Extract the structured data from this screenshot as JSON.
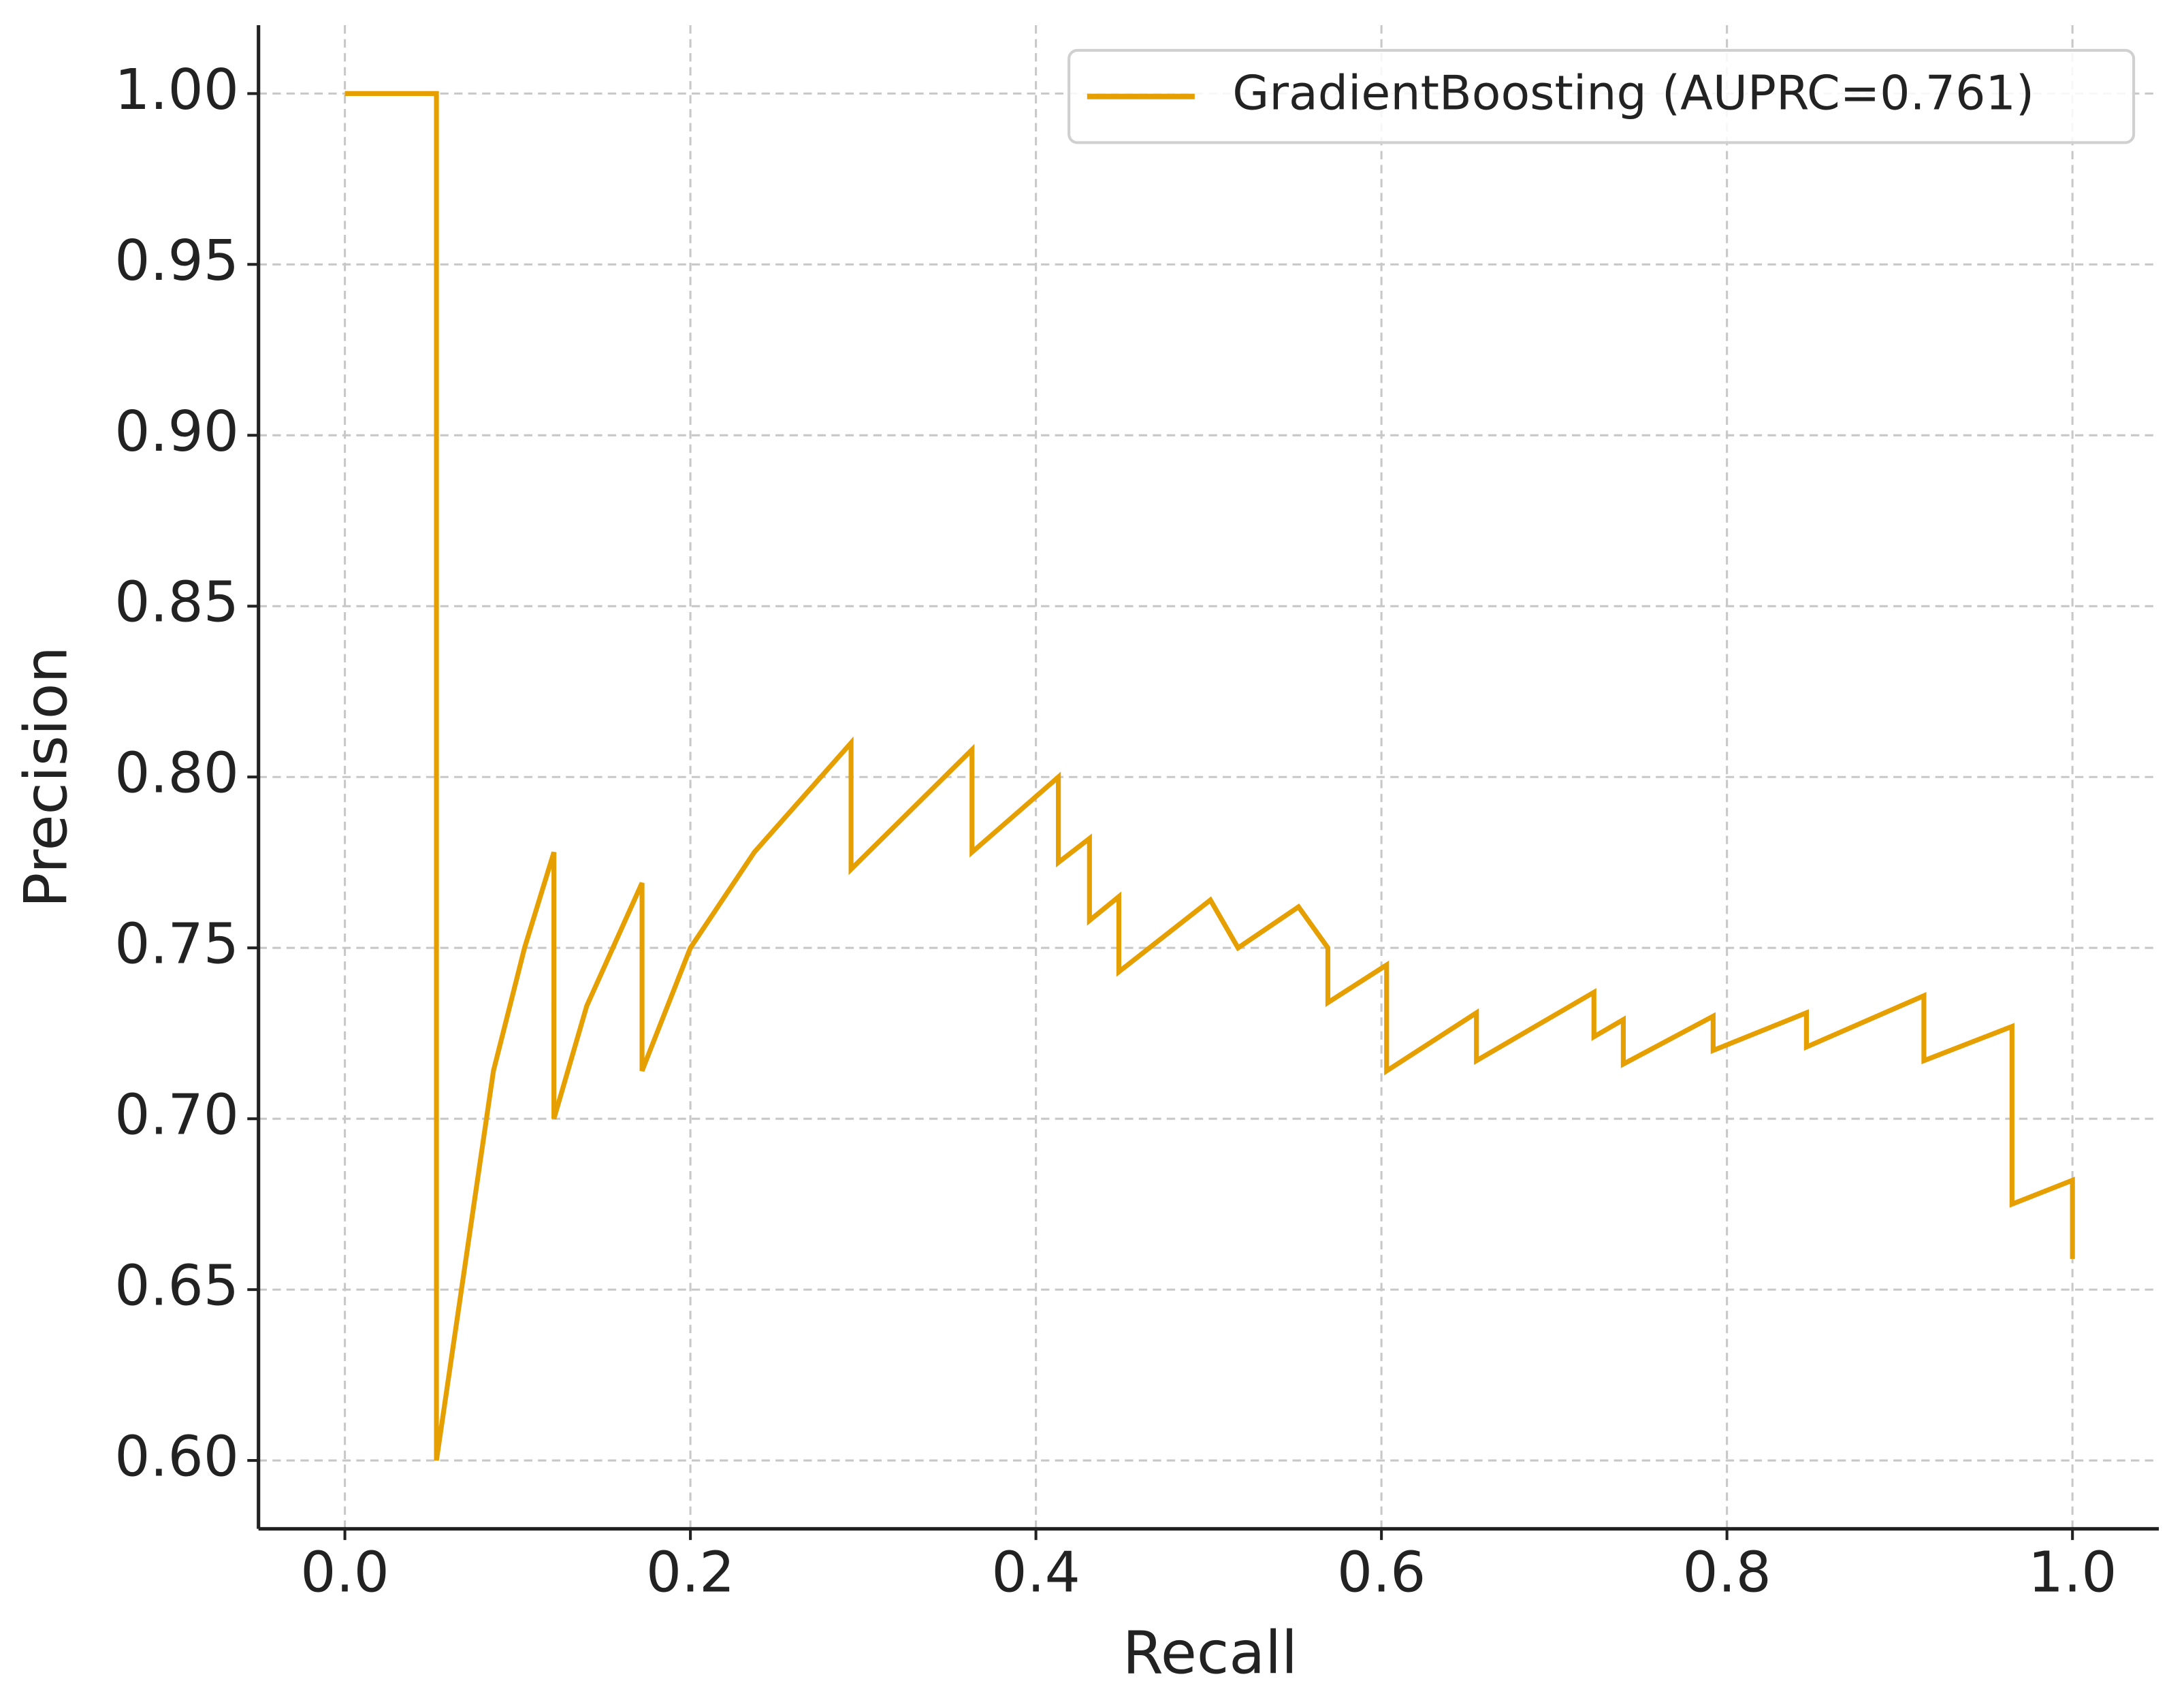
{
  "chart_data": {
    "type": "line",
    "xlabel": "Recall",
    "ylabel": "Precision",
    "xlim": [
      -0.05,
      1.05
    ],
    "ylim": [
      0.58,
      1.02
    ],
    "xticks": [
      {
        "value": 0,
        "label": "0.0"
      },
      {
        "value": 0.2,
        "label": "0.2"
      },
      {
        "value": 0.4,
        "label": "0.4"
      },
      {
        "value": 0.6,
        "label": "0.6"
      },
      {
        "value": 0.8,
        "label": "0.8"
      },
      {
        "value": 1,
        "label": "1.0"
      }
    ],
    "yticks": [
      {
        "value": 0.6,
        "label": "0.60"
      },
      {
        "value": 0.65,
        "label": "0.65"
      },
      {
        "value": 0.7,
        "label": "0.70"
      },
      {
        "value": 0.75,
        "label": "0.75"
      },
      {
        "value": 0.8,
        "label": "0.80"
      },
      {
        "value": 0.85,
        "label": "0.85"
      },
      {
        "value": 0.9,
        "label": "0.90"
      },
      {
        "value": 0.95,
        "label": "0.95"
      },
      {
        "value": 1,
        "label": "1.00"
      }
    ],
    "grid": true,
    "legend": "upper right",
    "series": [
      {
        "name": "GradientBoosting (AUPRC=0.761)",
        "color": "#e69f00",
        "x": [
          0,
          0.053,
          0.053,
          0.086,
          0.104,
          0.121,
          0.121,
          0.14,
          0.172,
          0.172,
          0.2,
          0.237,
          0.293,
          0.293,
          0.363,
          0.363,
          0.413,
          0.413,
          0.431,
          0.431,
          0.448,
          0.448,
          0.501,
          0.517,
          0.552,
          0.569,
          0.569,
          0.603,
          0.603,
          0.655,
          0.655,
          0.723,
          0.723,
          0.74,
          0.74,
          0.792,
          0.792,
          0.846,
          0.846,
          0.914,
          0.914,
          0.965,
          0.965,
          1,
          1
        ],
        "values": [
          1,
          1,
          0.6,
          0.714,
          0.75,
          0.778,
          0.7,
          0.733,
          0.769,
          0.714,
          0.75,
          0.778,
          0.81,
          0.773,
          0.808,
          0.778,
          0.8,
          0.775,
          0.782,
          0.758,
          0.765,
          0.743,
          0.764,
          0.75,
          0.762,
          0.75,
          0.734,
          0.745,
          0.714,
          0.731,
          0.717,
          0.737,
          0.724,
          0.729,
          0.716,
          0.73,
          0.72,
          0.731,
          0.721,
          0.736,
          0.717,
          0.727,
          0.675,
          0.682,
          0.659
        ]
      }
    ]
  }
}
